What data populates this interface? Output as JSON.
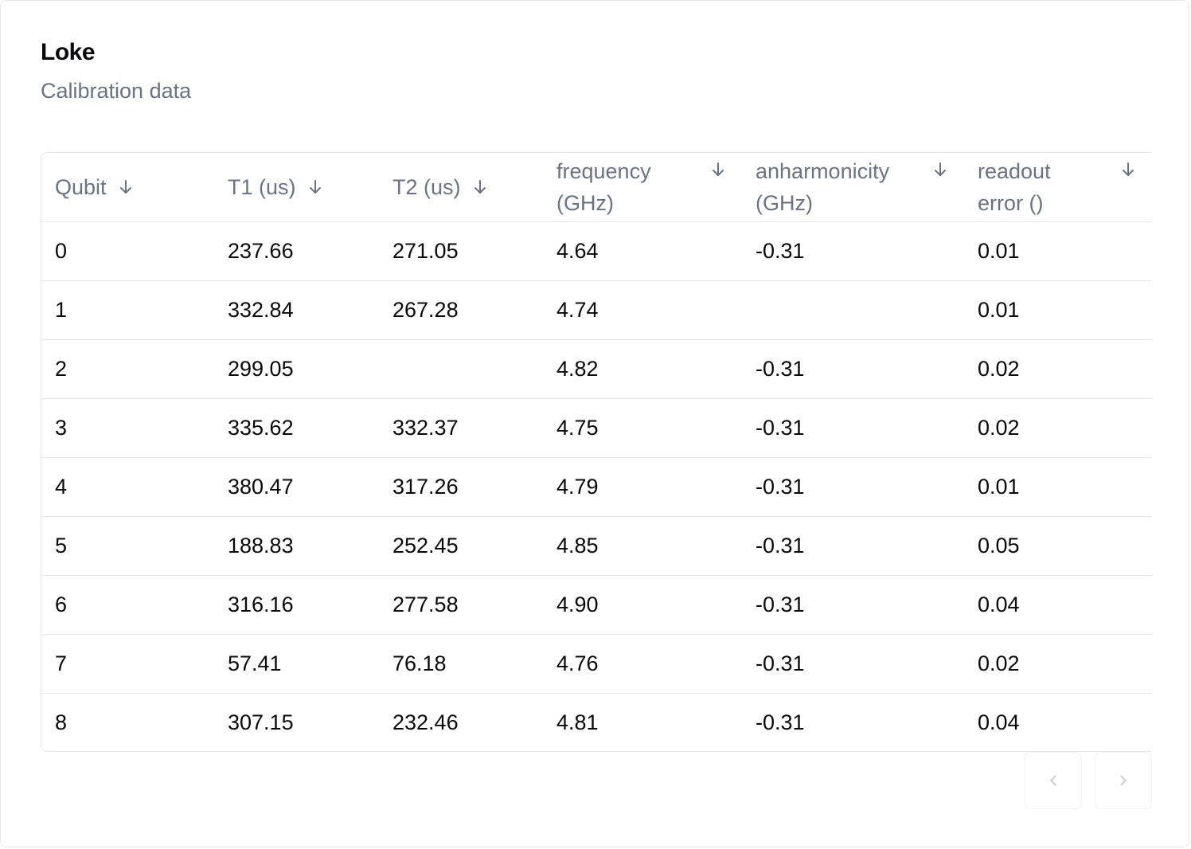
{
  "card": {
    "title": "Loke",
    "subtitle": "Calibration data"
  },
  "table": {
    "columns": [
      {
        "label": "Qubit",
        "sort_icon": "arrow-down-icon"
      },
      {
        "label": "T1 (us)",
        "sort_icon": "arrow-down-icon"
      },
      {
        "label": "T2 (us)",
        "sort_icon": "arrow-down-icon"
      },
      {
        "label": "frequency (GHz)",
        "sort_icon": "arrow-down-icon"
      },
      {
        "label": "anharmonicity (GHz)",
        "sort_icon": "arrow-down-icon"
      },
      {
        "label": "readout error ()",
        "sort_icon": "arrow-down-icon"
      }
    ],
    "rows": [
      [
        "0",
        "237.66",
        "271.05",
        "4.64",
        "-0.31",
        "0.01"
      ],
      [
        "1",
        "332.84",
        "267.28",
        "4.74",
        "",
        "0.01"
      ],
      [
        "2",
        "299.05",
        "",
        "4.82",
        "-0.31",
        "0.02"
      ],
      [
        "3",
        "335.62",
        "332.37",
        "4.75",
        "-0.31",
        "0.02"
      ],
      [
        "4",
        "380.47",
        "317.26",
        "4.79",
        "-0.31",
        "0.01"
      ],
      [
        "5",
        "188.83",
        "252.45",
        "4.85",
        "-0.31",
        "0.05"
      ],
      [
        "6",
        "316.16",
        "277.58",
        "4.90",
        "-0.31",
        "0.04"
      ],
      [
        "7",
        "57.41",
        "76.18",
        "4.76",
        "-0.31",
        "0.02"
      ],
      [
        "8",
        "307.15",
        "232.46",
        "4.81",
        "-0.31",
        "0.04"
      ]
    ]
  },
  "pagination": {
    "prev_icon": "chevron-left-icon",
    "next_icon": "chevron-right-icon"
  },
  "colors": {
    "border": "#e5e7eb",
    "header_text": "#6b7280",
    "body_text": "#09090b"
  }
}
